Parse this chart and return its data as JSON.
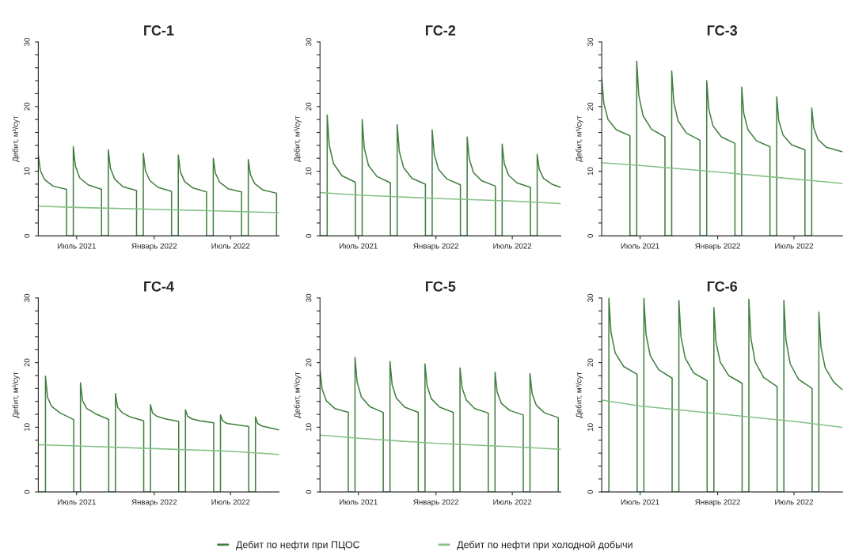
{
  "chart_data": [
    {
      "type": "line",
      "title": "ГС-1",
      "ylabel": "Дебит, м³/сут",
      "xlim": [
        "2021-04-01",
        "2022-10-24"
      ],
      "xticks": [
        {
          "value": "2021-07-01",
          "label": "Июль 2021"
        },
        {
          "value": "2022-01-01",
          "label": "Январь 2022"
        },
        {
          "value": "2022-07-01",
          "label": "Июль 2022"
        }
      ],
      "ylim": [
        0,
        30
      ],
      "yticks": [
        0,
        {
          "value": 2,
          "label": null
        },
        {
          "value": 4,
          "label": null
        },
        {
          "value": 6,
          "label": null
        },
        {
          "value": 8,
          "label": null
        },
        10,
        {
          "value": 12,
          "label": null
        },
        {
          "value": 14,
          "label": null
        },
        {
          "value": 16,
          "label": null
        },
        {
          "value": 18,
          "label": null
        },
        20,
        {
          "value": 22,
          "label": null
        },
        {
          "value": 24,
          "label": null
        },
        {
          "value": 26,
          "label": null
        },
        {
          "value": 28,
          "label": null
        },
        30
      ],
      "grid": false,
      "series": [
        {
          "color": "#3f7f3f",
          "x": [
            "2021-04-01",
            "2021-04-06",
            "2021-04-16",
            "2021-05-06",
            "2021-06-07",
            "2021-06-07",
            "2021-06-23",
            "2021-06-23",
            "2021-06-28",
            "2021-07-08",
            "2021-07-28",
            "2021-08-29",
            "2021-08-29",
            "2021-09-14",
            "2021-09-14",
            "2021-09-19",
            "2021-09-29",
            "2021-10-19",
            "2021-11-20",
            "2021-11-20",
            "2021-12-06",
            "2021-12-06",
            "2021-12-11",
            "2021-12-21",
            "2022-01-10",
            "2022-02-11",
            "2022-02-11",
            "2022-02-27",
            "2022-02-27",
            "2022-03-04",
            "2022-03-14",
            "2022-04-03",
            "2022-05-05",
            "2022-05-05",
            "2022-05-21",
            "2022-05-21",
            "2022-05-26",
            "2022-06-05",
            "2022-06-25",
            "2022-07-27",
            "2022-07-27",
            "2022-08-12",
            "2022-08-12",
            "2022-08-17",
            "2022-08-27",
            "2022-09-16",
            "2022-10-18",
            "2022-10-18"
          ],
          "values": [
            12.5,
            10.1,
            8.7,
            7.7,
            7.2,
            0,
            0,
            13.8,
            10.8,
            9.0,
            7.9,
            7.2,
            0,
            0,
            13.3,
            10.5,
            8.8,
            7.6,
            7.0,
            0,
            0,
            12.8,
            10.1,
            8.6,
            7.5,
            6.9,
            0,
            0,
            12.5,
            9.9,
            8.4,
            7.4,
            6.8,
            0,
            0,
            12.0,
            9.7,
            8.3,
            7.3,
            6.8,
            0,
            0,
            11.8,
            9.5,
            8.1,
            7.1,
            6.6,
            0
          ]
        },
        {
          "color": "#86c086",
          "x": [
            "2021-04-01",
            "2021-07-01",
            "2022-01-01",
            "2022-07-01",
            "2022-10-24"
          ],
          "values": [
            4.6,
            4.4,
            4.1,
            3.8,
            3.6
          ]
        }
      ]
    },
    {
      "type": "line",
      "title": "ГС-2",
      "ylabel": "Дебит, м³/сут",
      "xlim": [
        "2021-04-01",
        "2022-10-24"
      ],
      "xticks": [
        {
          "value": "2021-07-01",
          "label": "Июль 2021"
        },
        {
          "value": "2022-01-01",
          "label": "Январь 2022"
        },
        {
          "value": "2022-07-01",
          "label": "Июль 2022"
        }
      ],
      "ylim": [
        0,
        30
      ],
      "yticks": [
        0,
        {
          "value": 2,
          "label": null
        },
        {
          "value": 4,
          "label": null
        },
        {
          "value": 6,
          "label": null
        },
        {
          "value": 8,
          "label": null
        },
        10,
        {
          "value": 12,
          "label": null
        },
        {
          "value": 14,
          "label": null
        },
        {
          "value": 16,
          "label": null
        },
        {
          "value": 18,
          "label": null
        },
        20,
        {
          "value": 22,
          "label": null
        },
        {
          "value": 24,
          "label": null
        },
        {
          "value": 26,
          "label": null
        },
        {
          "value": 28,
          "label": null
        },
        30
      ],
      "grid": false,
      "series": [
        {
          "color": "#3f7f3f",
          "x": [
            "2021-04-01",
            "2021-04-18",
            "2021-04-18",
            "2021-04-23",
            "2021-05-03",
            "2021-05-23",
            "2021-06-24",
            "2021-06-24",
            "2021-07-10",
            "2021-07-10",
            "2021-07-15",
            "2021-07-25",
            "2021-08-14",
            "2021-09-15",
            "2021-09-15",
            "2021-10-01",
            "2021-10-01",
            "2021-10-06",
            "2021-10-16",
            "2021-11-05",
            "2021-12-07",
            "2021-12-07",
            "2021-12-23",
            "2021-12-23",
            "2021-12-28",
            "2022-01-07",
            "2022-01-27",
            "2022-02-28",
            "2022-02-28",
            "2022-03-16",
            "2022-03-16",
            "2022-03-21",
            "2022-03-31",
            "2022-04-20",
            "2022-05-22",
            "2022-05-22",
            "2022-06-07",
            "2022-06-07",
            "2022-06-12",
            "2022-06-22",
            "2022-07-12",
            "2022-08-13",
            "2022-08-13",
            "2022-08-29",
            "2022-08-29",
            "2022-09-03",
            "2022-09-13",
            "2022-10-03",
            "2022-10-24"
          ],
          "values": [
            0,
            0,
            18.7,
            14.0,
            11.2,
            9.3,
            8.3,
            0,
            0,
            18.0,
            13.6,
            10.9,
            9.2,
            8.2,
            0,
            0,
            17.2,
            13.1,
            10.6,
            8.9,
            8.0,
            0,
            0,
            16.4,
            12.6,
            10.3,
            8.8,
            7.9,
            0,
            0,
            15.3,
            11.9,
            9.8,
            8.5,
            7.7,
            0,
            0,
            14.2,
            11.2,
            9.4,
            8.2,
            7.5,
            0,
            0,
            12.6,
            10.3,
            8.9,
            8.0,
            7.5
          ]
        },
        {
          "color": "#86c086",
          "x": [
            "2021-04-01",
            "2021-07-01",
            "2022-01-01",
            "2022-07-01",
            "2022-10-24"
          ],
          "values": [
            6.7,
            6.3,
            5.8,
            5.4,
            5.0
          ]
        }
      ]
    },
    {
      "type": "line",
      "title": "ГС-3",
      "ylabel": "Дебит, м³/сут",
      "xlim": [
        "2021-04-01",
        "2022-10-24"
      ],
      "xticks": [
        {
          "value": "2021-07-01",
          "label": "Июль 2021"
        },
        {
          "value": "2022-01-01",
          "label": "Январь 2022"
        },
        {
          "value": "2022-07-01",
          "label": "Июль 2022"
        }
      ],
      "ylim": [
        0,
        30
      ],
      "yticks": [
        0,
        {
          "value": 2,
          "label": null
        },
        {
          "value": 4,
          "label": null
        },
        {
          "value": 6,
          "label": null
        },
        {
          "value": 8,
          "label": null
        },
        10,
        {
          "value": 12,
          "label": null
        },
        {
          "value": 14,
          "label": null
        },
        {
          "value": 16,
          "label": null
        },
        {
          "value": 18,
          "label": null
        },
        20,
        {
          "value": 22,
          "label": null
        },
        {
          "value": 24,
          "label": null
        },
        {
          "value": 26,
          "label": null
        },
        {
          "value": 28,
          "label": null
        },
        30
      ],
      "grid": false,
      "series": [
        {
          "color": "#3f7f3f",
          "x": [
            "2021-04-01",
            "2021-04-06",
            "2021-04-16",
            "2021-05-06",
            "2021-06-07",
            "2021-06-07",
            "2021-06-23",
            "2021-06-23",
            "2021-06-28",
            "2021-07-08",
            "2021-07-28",
            "2021-08-29",
            "2021-08-29",
            "2021-09-14",
            "2021-09-14",
            "2021-09-19",
            "2021-09-29",
            "2021-10-19",
            "2021-11-20",
            "2021-11-20",
            "2021-12-06",
            "2021-12-06",
            "2021-12-11",
            "2021-12-21",
            "2022-01-10",
            "2022-02-11",
            "2022-02-11",
            "2022-02-27",
            "2022-02-27",
            "2022-03-04",
            "2022-03-14",
            "2022-04-03",
            "2022-05-05",
            "2022-05-05",
            "2022-05-21",
            "2022-05-21",
            "2022-05-26",
            "2022-06-05",
            "2022-06-25",
            "2022-07-27",
            "2022-07-27",
            "2022-08-12",
            "2022-08-12",
            "2022-08-17",
            "2022-08-27",
            "2022-09-16",
            "2022-10-24"
          ],
          "values": [
            24.5,
            20.5,
            18.0,
            16.4,
            15.5,
            0,
            0,
            27.0,
            21.7,
            18.6,
            16.5,
            15.3,
            0,
            0,
            25.5,
            20.7,
            17.8,
            15.9,
            14.8,
            0,
            0,
            24.0,
            19.6,
            17.0,
            15.3,
            14.3,
            0,
            0,
            23.0,
            18.9,
            16.4,
            14.7,
            13.8,
            0,
            0,
            21.5,
            17.8,
            15.6,
            14.1,
            13.3,
            0,
            0,
            19.8,
            16.7,
            14.9,
            13.7,
            13.0
          ]
        },
        {
          "color": "#86c086",
          "x": [
            "2021-04-01",
            "2021-07-01",
            "2022-01-01",
            "2022-07-01",
            "2022-10-24"
          ],
          "values": [
            11.3,
            10.9,
            9.9,
            8.8,
            8.1
          ]
        }
      ]
    },
    {
      "type": "line",
      "title": "ГС-4",
      "ylabel": "Дебит, м³/сут",
      "xlim": [
        "2021-04-01",
        "2022-10-24"
      ],
      "xticks": [
        {
          "value": "2021-07-01",
          "label": "Июль 2021"
        },
        {
          "value": "2022-01-01",
          "label": "Январь 2022"
        },
        {
          "value": "2022-07-01",
          "label": "Июль 2022"
        }
      ],
      "ylim": [
        0,
        30
      ],
      "yticks": [
        0,
        {
          "value": 2,
          "label": null
        },
        {
          "value": 4,
          "label": null
        },
        {
          "value": 6,
          "label": null
        },
        {
          "value": 8,
          "label": null
        },
        10,
        {
          "value": 12,
          "label": null
        },
        {
          "value": 14,
          "label": null
        },
        {
          "value": 16,
          "label": null
        },
        {
          "value": 18,
          "label": null
        },
        20,
        {
          "value": 22,
          "label": null
        },
        {
          "value": 24,
          "label": null
        },
        {
          "value": 26,
          "label": null
        },
        {
          "value": 28,
          "label": null
        },
        30
      ],
      "grid": false,
      "series": [
        {
          "color": "#3f7f3f",
          "x": [
            "2021-04-01",
            "2021-04-18",
            "2021-04-18",
            "2021-04-23",
            "2021-05-03",
            "2021-05-23",
            "2021-06-24",
            "2021-06-24",
            "2021-07-10",
            "2021-07-10",
            "2021-07-15",
            "2021-07-25",
            "2021-08-14",
            "2021-09-15",
            "2021-09-15",
            "2021-10-01",
            "2021-10-01",
            "2021-10-06",
            "2021-10-16",
            "2021-11-05",
            "2021-12-07",
            "2021-12-07",
            "2021-12-23",
            "2021-12-23",
            "2021-12-28",
            "2022-01-07",
            "2022-01-27",
            "2022-02-28",
            "2022-02-28",
            "2022-03-16",
            "2022-03-16",
            "2022-03-21",
            "2022-03-31",
            "2022-04-20",
            "2022-05-22",
            "2022-05-22",
            "2022-06-07",
            "2022-06-07",
            "2022-06-12",
            "2022-06-22",
            "2022-07-12",
            "2022-08-13",
            "2022-08-13",
            "2022-08-29",
            "2022-08-29",
            "2022-09-03",
            "2022-09-13",
            "2022-10-03",
            "2022-10-24"
          ],
          "values": [
            0,
            0,
            17.9,
            14.6,
            13.2,
            12.2,
            11.2,
            0,
            0,
            16.9,
            14.1,
            12.9,
            12.1,
            11.2,
            0,
            0,
            15.2,
            13.1,
            12.3,
            11.6,
            11.0,
            0,
            0,
            13.5,
            12.2,
            11.7,
            11.3,
            10.9,
            0,
            0,
            12.7,
            11.7,
            11.3,
            11.0,
            10.7,
            0,
            0,
            11.9,
            11.0,
            10.6,
            10.4,
            10.1,
            0,
            0,
            11.6,
            10.6,
            10.2,
            9.9,
            9.6
          ]
        },
        {
          "color": "#86c086",
          "x": [
            "2021-04-01",
            "2021-07-01",
            "2022-01-01",
            "2022-07-01",
            "2022-10-24"
          ],
          "values": [
            7.3,
            7.1,
            6.7,
            6.3,
            5.8
          ]
        }
      ]
    },
    {
      "type": "line",
      "title": "ГС-5",
      "ylabel": "Дебит, м³/сут",
      "xlim": [
        "2021-04-01",
        "2022-10-24"
      ],
      "xticks": [
        {
          "value": "2021-07-01",
          "label": "Июль 2021"
        },
        {
          "value": "2022-01-01",
          "label": "Январь 2022"
        },
        {
          "value": "2022-07-01",
          "label": "Июль 2022"
        }
      ],
      "ylim": [
        0,
        30
      ],
      "yticks": [
        0,
        {
          "value": 2,
          "label": null
        },
        {
          "value": 4,
          "label": null
        },
        {
          "value": 6,
          "label": null
        },
        {
          "value": 8,
          "label": null
        },
        10,
        {
          "value": 12,
          "label": null
        },
        {
          "value": 14,
          "label": null
        },
        {
          "value": 16,
          "label": null
        },
        {
          "value": 18,
          "label": null
        },
        20,
        {
          "value": 22,
          "label": null
        },
        {
          "value": 24,
          "label": null
        },
        {
          "value": 26,
          "label": null
        },
        {
          "value": 28,
          "label": null
        },
        30
      ],
      "grid": false,
      "legend": "bottom",
      "series": [
        {
          "name": "Дебит по нефти при ПЦОС",
          "color": "#3f7f3f",
          "x": [
            "2021-04-01",
            "2021-04-06",
            "2021-04-16",
            "2021-05-06",
            "2021-06-07",
            "2021-06-07",
            "2021-06-23",
            "2021-06-23",
            "2021-06-28",
            "2021-07-08",
            "2021-07-28",
            "2021-08-29",
            "2021-08-29",
            "2021-09-14",
            "2021-09-14",
            "2021-09-19",
            "2021-09-29",
            "2021-10-19",
            "2021-11-20",
            "2021-11-20",
            "2021-12-06",
            "2021-12-06",
            "2021-12-11",
            "2021-12-21",
            "2022-01-10",
            "2022-02-11",
            "2022-02-11",
            "2022-02-27",
            "2022-02-27",
            "2022-03-04",
            "2022-03-14",
            "2022-04-03",
            "2022-05-05",
            "2022-05-05",
            "2022-05-21",
            "2022-05-21",
            "2022-05-26",
            "2022-06-05",
            "2022-06-25",
            "2022-07-27",
            "2022-07-27",
            "2022-08-12",
            "2022-08-12",
            "2022-08-17",
            "2022-08-27",
            "2022-09-16",
            "2022-10-18",
            "2022-10-18"
          ],
          "values": [
            18.8,
            15.9,
            14.1,
            12.9,
            12.3,
            0,
            0,
            20.8,
            17.0,
            14.7,
            13.2,
            12.3,
            0,
            0,
            20.2,
            16.6,
            14.5,
            13.1,
            12.3,
            0,
            0,
            19.8,
            16.4,
            14.4,
            13.1,
            12.3,
            0,
            0,
            19.2,
            16.1,
            14.2,
            12.9,
            12.2,
            0,
            0,
            18.5,
            15.5,
            13.7,
            12.6,
            11.9,
            0,
            0,
            18.3,
            15.2,
            13.4,
            12.2,
            11.5,
            0
          ]
        },
        {
          "name": "Дебит по нефти при холодной добычи",
          "color": "#86c086",
          "x": [
            "2021-04-01",
            "2021-07-01",
            "2022-01-01",
            "2022-07-01",
            "2022-10-24"
          ],
          "values": [
            8.8,
            8.3,
            7.5,
            7.0,
            6.6
          ]
        }
      ]
    },
    {
      "type": "line",
      "title": "ГС-6",
      "ylabel": "Дебит, м³/сут",
      "xlim": [
        "2021-04-01",
        "2022-10-24"
      ],
      "xticks": [
        {
          "value": "2021-07-01",
          "label": "Июль 2021"
        },
        {
          "value": "2022-01-01",
          "label": "Январь 2022"
        },
        {
          "value": "2022-07-01",
          "label": "Июль 2022"
        }
      ],
      "ylim": [
        0,
        30
      ],
      "yticks": [
        0,
        {
          "value": 2,
          "label": null
        },
        {
          "value": 4,
          "label": null
        },
        {
          "value": 6,
          "label": null
        },
        {
          "value": 8,
          "label": null
        },
        10,
        {
          "value": 12,
          "label": null
        },
        {
          "value": 14,
          "label": null
        },
        {
          "value": 16,
          "label": null
        },
        {
          "value": 18,
          "label": null
        },
        20,
        {
          "value": 22,
          "label": null
        },
        {
          "value": 24,
          "label": null
        },
        {
          "value": 26,
          "label": null
        },
        {
          "value": 28,
          "label": null
        },
        30
      ],
      "grid": false,
      "series": [
        {
          "color": "#3f7f3f",
          "x": [
            "2021-04-01",
            "2021-04-18",
            "2021-04-18",
            "2021-04-23",
            "2021-05-03",
            "2021-05-23",
            "2021-06-24",
            "2021-06-24",
            "2021-07-10",
            "2021-07-10",
            "2021-07-15",
            "2021-07-25",
            "2021-08-14",
            "2021-09-15",
            "2021-09-15",
            "2021-10-01",
            "2021-10-01",
            "2021-10-06",
            "2021-10-16",
            "2021-11-05",
            "2021-12-07",
            "2021-12-07",
            "2021-12-23",
            "2021-12-23",
            "2021-12-28",
            "2022-01-07",
            "2022-01-27",
            "2022-02-28",
            "2022-02-28",
            "2022-03-16",
            "2022-03-16",
            "2022-03-21",
            "2022-03-31",
            "2022-04-20",
            "2022-05-22",
            "2022-05-22",
            "2022-06-07",
            "2022-06-07",
            "2022-06-12",
            "2022-06-22",
            "2022-07-12",
            "2022-08-13",
            "2022-08-13",
            "2022-08-29",
            "2022-08-29",
            "2022-09-03",
            "2022-09-13",
            "2022-10-03",
            "2022-10-24"
          ],
          "values": [
            0,
            0,
            30.0,
            24.7,
            21.5,
            19.4,
            18.2,
            0,
            0,
            30.0,
            24.4,
            21.1,
            18.9,
            17.6,
            0,
            0,
            29.6,
            24.0,
            20.7,
            18.4,
            17.2,
            0,
            0,
            28.5,
            23.2,
            20.1,
            18.0,
            16.8,
            0,
            0,
            29.8,
            23.7,
            20.1,
            17.7,
            16.3,
            0,
            0,
            29.6,
            23.5,
            19.8,
            17.4,
            16.0,
            0,
            0,
            27.8,
            22.4,
            19.2,
            17.0,
            15.8
          ]
        },
        {
          "color": "#86c086",
          "x": [
            "2021-04-01",
            "2021-07-01",
            "2022-01-01",
            "2022-07-01",
            "2022-10-24"
          ],
          "values": [
            14.2,
            13.3,
            12.1,
            10.9,
            10.0
          ]
        }
      ]
    }
  ]
}
